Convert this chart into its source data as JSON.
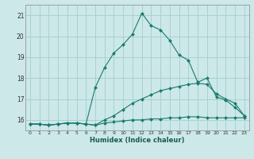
{
  "xlabel": "Humidex (Indice chaleur)",
  "bg_color": "#cce8e8",
  "grid_color": "#aad0d0",
  "line_color": "#1a7a6e",
  "xlim": [
    -0.5,
    23.5
  ],
  "ylim": [
    15.5,
    21.5
  ],
  "yticks": [
    16,
    17,
    18,
    19,
    20,
    21
  ],
  "xticks": [
    0,
    1,
    2,
    3,
    4,
    5,
    6,
    7,
    8,
    9,
    10,
    11,
    12,
    13,
    14,
    15,
    16,
    17,
    18,
    19,
    20,
    21,
    22,
    23
  ],
  "series": [
    {
      "x": [
        0,
        1,
        2,
        3,
        4,
        5,
        6,
        7,
        8,
        9,
        10,
        11,
        12,
        13,
        14,
        15,
        16,
        17,
        18,
        19,
        20,
        21,
        22,
        23
      ],
      "y": [
        15.8,
        15.8,
        15.75,
        15.8,
        15.85,
        15.85,
        15.8,
        15.75,
        15.85,
        15.9,
        15.95,
        16.0,
        16.0,
        16.05,
        16.05,
        16.1,
        16.1,
        16.15,
        16.15,
        16.1,
        16.1,
        16.1,
        16.1,
        16.1
      ],
      "style": "solid",
      "marker": "D"
    },
    {
      "x": [
        0,
        1,
        2,
        3,
        4,
        5,
        6,
        7,
        8,
        9,
        10,
        11,
        12,
        13,
        14,
        15,
        16,
        17,
        18,
        19,
        20,
        21,
        22,
        23
      ],
      "y": [
        15.8,
        15.8,
        15.75,
        15.8,
        15.85,
        15.85,
        15.8,
        15.75,
        16.0,
        16.2,
        16.5,
        16.8,
        17.0,
        17.2,
        17.4,
        17.5,
        17.6,
        17.7,
        17.75,
        17.7,
        17.25,
        17.0,
        16.8,
        16.2
      ],
      "style": "solid",
      "marker": "D"
    },
    {
      "x": [
        0,
        1,
        2,
        3,
        4,
        5,
        6,
        7,
        8,
        9,
        10,
        11,
        12,
        13,
        14,
        15,
        16,
        17,
        18,
        19,
        20,
        21,
        22,
        23
      ],
      "y": [
        15.8,
        15.8,
        15.75,
        15.8,
        15.85,
        15.85,
        15.8,
        17.55,
        18.5,
        19.2,
        19.6,
        20.1,
        21.1,
        20.5,
        20.3,
        19.8,
        19.1,
        18.85,
        17.8,
        18.0,
        17.1,
        16.95,
        16.6,
        16.2
      ],
      "style": "solid",
      "marker": "D"
    }
  ]
}
